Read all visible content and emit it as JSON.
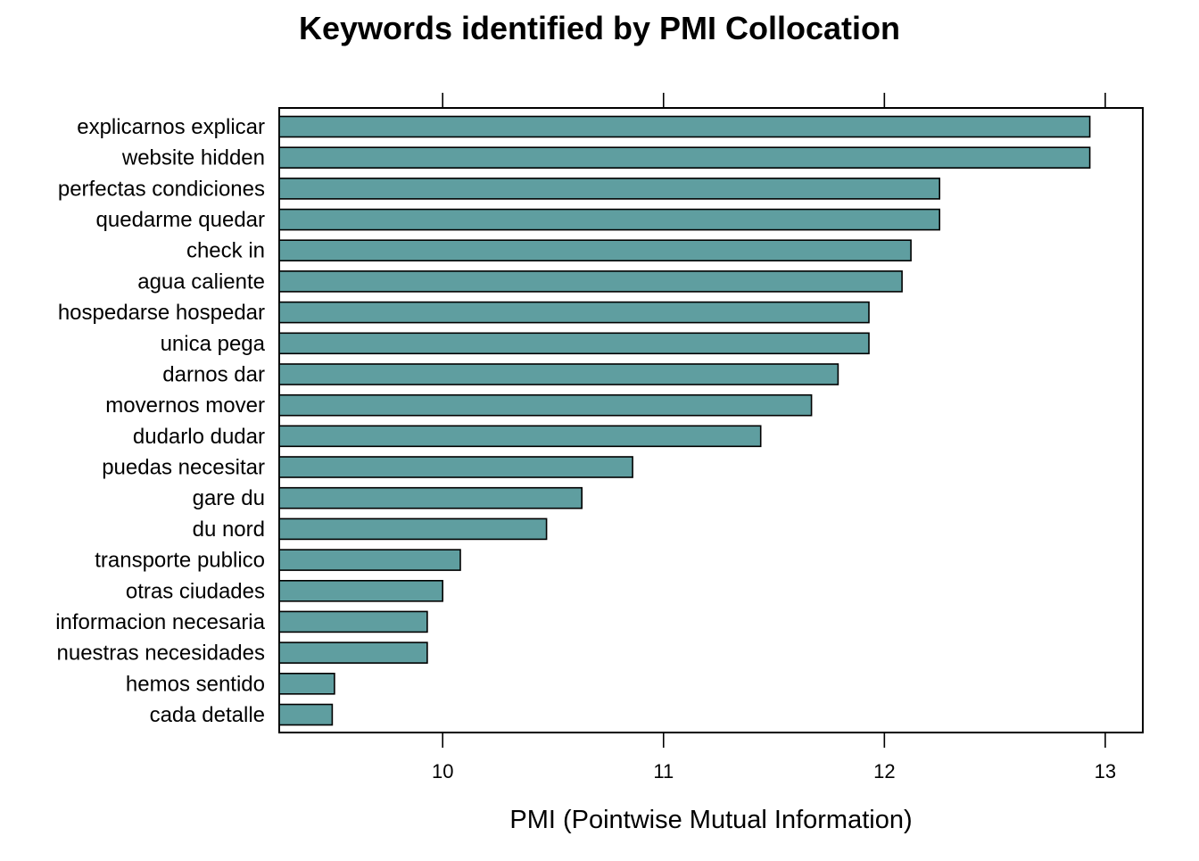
{
  "chart_data": {
    "type": "bar",
    "orientation": "horizontal",
    "title": "Keywords identified by PMI Collocation",
    "xlabel": "PMI (Pointwise Mutual Information)",
    "ylabel": "",
    "xlim": [
      9.26,
      13.17
    ],
    "xticks": [
      10,
      11,
      12,
      13
    ],
    "grid": false,
    "bar_color": "#5f9ea0",
    "categories": [
      "explicarnos explicar",
      "website hidden",
      "perfectas condiciones",
      "quedarme quedar",
      "check in",
      "agua caliente",
      "hospedarse hospedar",
      "unica pega",
      "darnos dar",
      "movernos mover",
      "dudarlo dudar",
      "puedas necesitar",
      "gare du",
      "du nord",
      "transporte publico",
      "otras ciudades",
      "informacion necesaria",
      "nuestras necesidades",
      "hemos sentido",
      "cada detalle"
    ],
    "values": [
      12.93,
      12.93,
      12.25,
      12.25,
      12.12,
      12.08,
      11.93,
      11.93,
      11.79,
      11.67,
      11.44,
      10.86,
      10.63,
      10.47,
      10.08,
      10.0,
      9.93,
      9.93,
      9.51,
      9.5
    ]
  }
}
